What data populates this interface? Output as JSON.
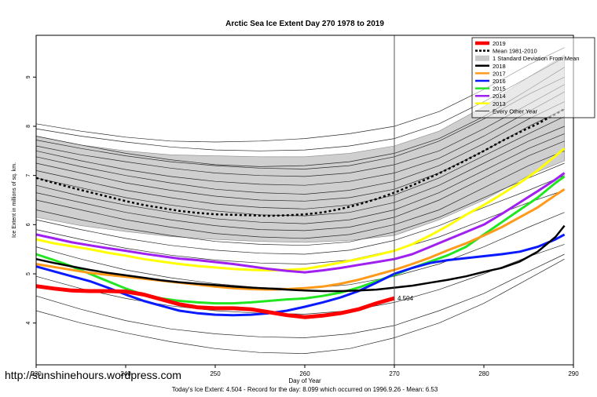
{
  "chart_data": {
    "type": "line",
    "title": "Arctic Sea Ice Extent Day 270 1978 to 2019",
    "xlabel": "Day of Year",
    "ylabel": "Ice Extent in millions of sq. km.",
    "xlim": [
      230,
      290
    ],
    "ylim": [
      3.15,
      9.85
    ],
    "x_ticks": [
      "230",
      "240",
      "250",
      "260",
      "270",
      "280",
      "290"
    ],
    "y_ticks": [
      "4",
      "5",
      "6",
      "7",
      "8",
      "9"
    ],
    "current_day": 270,
    "current_value_label": "4.504",
    "footer": "Today's Ice Extent: 4.504 - Record for the day: 8.099 which occurred on 1996.9.26 - Mean: 6.53",
    "legend_position": "top-right",
    "legend": [
      {
        "label": "2019",
        "color": "#ff0000",
        "style": "thick"
      },
      {
        "label": "Mean 1981-2010",
        "color": "#000000",
        "style": "dotted"
      },
      {
        "label": "1 Standard Deviation From Mean",
        "color": "#c8c8c8",
        "style": "box"
      },
      {
        "label": "2018",
        "color": "#000000",
        "style": "solid"
      },
      {
        "label": "2017",
        "color": "#ff9a1a",
        "style": "solid"
      },
      {
        "label": "2016",
        "color": "#0a1aff",
        "style": "solid"
      },
      {
        "label": "2015",
        "color": "#22e622",
        "style": "solid"
      },
      {
        "label": "2014",
        "color": "#a020f0",
        "style": "solid"
      },
      {
        "label": "2013",
        "color": "#ffff00",
        "style": "solid"
      },
      {
        "label": "Every Other Year",
        "color": "#000000",
        "style": "thin"
      }
    ],
    "std_band": {
      "x": [
        230,
        235,
        240,
        245,
        250,
        255,
        260,
        265,
        270,
        275,
        280,
        285,
        289
      ],
      "upper": [
        7.8,
        7.62,
        7.5,
        7.42,
        7.4,
        7.38,
        7.38,
        7.45,
        7.6,
        7.9,
        8.4,
        9.0,
        9.45
      ],
      "lower": [
        6.15,
        5.98,
        5.86,
        5.76,
        5.7,
        5.66,
        5.64,
        5.68,
        5.78,
        6.1,
        6.5,
        7.0,
        7.3
      ]
    },
    "series": [
      {
        "name": "Mean 1981-2010",
        "color": "#000000",
        "width": 2.5,
        "dash": "3,3",
        "x": [
          230,
          232,
          234,
          236,
          238,
          240,
          242,
          244,
          246,
          248,
          250,
          252,
          254,
          256,
          258,
          260,
          262,
          264,
          266,
          268,
          270,
          272,
          274,
          276,
          278,
          280,
          282,
          284,
          286,
          288,
          289
        ],
        "values": [
          6.95,
          6.85,
          6.75,
          6.66,
          6.57,
          6.48,
          6.4,
          6.34,
          6.28,
          6.24,
          6.21,
          6.2,
          6.19,
          6.18,
          6.19,
          6.21,
          6.25,
          6.32,
          6.41,
          6.52,
          6.65,
          6.8,
          6.96,
          7.13,
          7.31,
          7.5,
          7.7,
          7.88,
          8.05,
          8.25,
          8.35
        ]
      },
      {
        "name": "2013",
        "color": "#ffff00",
        "width": 3,
        "x": [
          230,
          232,
          234,
          236,
          238,
          240,
          242,
          244,
          246,
          248,
          250,
          252,
          254,
          256,
          258,
          260,
          262,
          264,
          266,
          268,
          270,
          272,
          274,
          276,
          278,
          280,
          282,
          284,
          286,
          288,
          289
        ],
        "values": [
          5.7,
          5.62,
          5.56,
          5.5,
          5.43,
          5.37,
          5.3,
          5.25,
          5.2,
          5.16,
          5.13,
          5.1,
          5.08,
          5.07,
          5.08,
          5.1,
          5.16,
          5.23,
          5.3,
          5.38,
          5.47,
          5.6,
          5.78,
          5.98,
          6.2,
          6.4,
          6.62,
          6.85,
          7.1,
          7.4,
          7.55
        ]
      },
      {
        "name": "2014",
        "color": "#a020f0",
        "width": 3,
        "x": [
          230,
          232,
          234,
          236,
          238,
          240,
          242,
          244,
          246,
          248,
          250,
          252,
          254,
          256,
          258,
          260,
          262,
          264,
          266,
          268,
          270,
          272,
          274,
          276,
          278,
          280,
          282,
          284,
          286,
          288,
          289
        ],
        "values": [
          5.8,
          5.72,
          5.64,
          5.58,
          5.52,
          5.47,
          5.41,
          5.36,
          5.31,
          5.28,
          5.24,
          5.2,
          5.15,
          5.1,
          5.06,
          5.03,
          5.07,
          5.12,
          5.18,
          5.24,
          5.3,
          5.4,
          5.55,
          5.7,
          5.85,
          6.0,
          6.22,
          6.45,
          6.68,
          6.92,
          7.05
        ]
      },
      {
        "name": "2015",
        "color": "#22e622",
        "width": 3,
        "x": [
          230,
          232,
          234,
          236,
          238,
          240,
          242,
          244,
          246,
          248,
          250,
          252,
          254,
          256,
          258,
          260,
          262,
          264,
          266,
          268,
          270,
          272,
          274,
          276,
          278,
          280,
          282,
          284,
          286,
          288,
          289
        ],
        "values": [
          5.4,
          5.28,
          5.15,
          5.0,
          4.85,
          4.7,
          4.58,
          4.5,
          4.45,
          4.42,
          4.4,
          4.4,
          4.42,
          4.45,
          4.48,
          4.5,
          4.55,
          4.62,
          4.72,
          4.85,
          4.98,
          5.12,
          5.25,
          5.38,
          5.55,
          5.8,
          6.05,
          6.3,
          6.55,
          6.85,
          6.98
        ]
      },
      {
        "name": "2016",
        "color": "#0a1aff",
        "width": 3,
        "x": [
          230,
          232,
          234,
          236,
          238,
          240,
          242,
          244,
          246,
          248,
          250,
          252,
          254,
          256,
          258,
          260,
          262,
          264,
          266,
          268,
          270,
          272,
          274,
          276,
          278,
          280,
          282,
          284,
          286,
          288,
          289
        ],
        "values": [
          5.15,
          5.05,
          4.95,
          4.85,
          4.72,
          4.58,
          4.45,
          4.35,
          4.25,
          4.2,
          4.17,
          4.16,
          4.17,
          4.2,
          4.25,
          4.33,
          4.42,
          4.52,
          4.65,
          4.82,
          5.0,
          5.12,
          5.22,
          5.28,
          5.32,
          5.36,
          5.4,
          5.45,
          5.55,
          5.7,
          5.8
        ]
      },
      {
        "name": "2017",
        "color": "#ff9a1a",
        "width": 3,
        "x": [
          230,
          232,
          234,
          236,
          238,
          240,
          242,
          244,
          246,
          248,
          250,
          252,
          254,
          256,
          258,
          260,
          262,
          264,
          266,
          268,
          270,
          272,
          274,
          276,
          278,
          280,
          282,
          284,
          286,
          288,
          289
        ],
        "values": [
          5.2,
          5.14,
          5.08,
          5.02,
          4.98,
          4.94,
          4.9,
          4.86,
          4.82,
          4.78,
          4.74,
          4.71,
          4.69,
          4.68,
          4.69,
          4.71,
          4.74,
          4.8,
          4.88,
          4.98,
          5.08,
          5.2,
          5.33,
          5.48,
          5.62,
          5.78,
          5.95,
          6.15,
          6.35,
          6.6,
          6.72
        ]
      },
      {
        "name": "2018",
        "color": "#000000",
        "width": 2.5,
        "x": [
          230,
          232,
          234,
          236,
          238,
          240,
          242,
          244,
          246,
          248,
          250,
          252,
          254,
          256,
          258,
          260,
          262,
          264,
          266,
          268,
          270,
          272,
          274,
          276,
          278,
          280,
          282,
          284,
          286,
          288,
          289
        ],
        "values": [
          5.3,
          5.22,
          5.15,
          5.08,
          5.02,
          4.97,
          4.92,
          4.87,
          4.83,
          4.8,
          4.77,
          4.74,
          4.72,
          4.7,
          4.68,
          4.66,
          4.65,
          4.65,
          4.66,
          4.68,
          4.72,
          4.76,
          4.82,
          4.88,
          4.95,
          5.04,
          5.12,
          5.25,
          5.45,
          5.75,
          5.98
        ]
      },
      {
        "name": "2019",
        "color": "#ff0000",
        "width": 5,
        "x": [
          230,
          232,
          234,
          236,
          238,
          240,
          242,
          244,
          246,
          248,
          250,
          252,
          254,
          256,
          258,
          260,
          262,
          264,
          266,
          268,
          270
        ],
        "values": [
          4.75,
          4.7,
          4.66,
          4.65,
          4.65,
          4.64,
          4.58,
          4.48,
          4.38,
          4.32,
          4.3,
          4.3,
          4.28,
          4.22,
          4.16,
          4.12,
          4.15,
          4.2,
          4.28,
          4.4,
          4.504
        ]
      }
    ],
    "other_years": {
      "x": [
        230,
        235,
        240,
        245,
        250,
        255,
        260,
        265,
        270,
        275,
        280,
        285,
        289
      ],
      "lines": [
        [
          8.05,
          7.9,
          7.78,
          7.7,
          7.68,
          7.7,
          7.75,
          7.85,
          8.0,
          8.3,
          8.75,
          9.25,
          9.6
        ],
        [
          7.95,
          7.8,
          7.68,
          7.58,
          7.52,
          7.5,
          7.52,
          7.6,
          7.75,
          8.05,
          8.5,
          9.0,
          9.4
        ],
        [
          7.8,
          7.62,
          7.45,
          7.32,
          7.22,
          7.18,
          7.2,
          7.28,
          7.45,
          7.75,
          8.2,
          8.75,
          9.2
        ],
        [
          7.72,
          7.55,
          7.4,
          7.28,
          7.2,
          7.15,
          7.13,
          7.2,
          7.38,
          7.7,
          8.15,
          8.65,
          9.0
        ],
        [
          7.6,
          7.42,
          7.28,
          7.15,
          7.05,
          7.0,
          6.98,
          7.05,
          7.22,
          7.5,
          7.95,
          8.45,
          8.85
        ],
        [
          7.5,
          7.3,
          7.12,
          6.98,
          6.88,
          6.82,
          6.8,
          6.88,
          7.05,
          7.35,
          7.8,
          8.3,
          8.7
        ],
        [
          7.38,
          7.18,
          7.0,
          6.85,
          6.72,
          6.65,
          6.62,
          6.7,
          6.88,
          7.2,
          7.65,
          8.15,
          8.5
        ],
        [
          7.25,
          7.05,
          6.85,
          6.7,
          6.58,
          6.5,
          6.48,
          6.55,
          6.72,
          7.05,
          7.5,
          8.0,
          8.35
        ],
        [
          7.1,
          6.9,
          6.7,
          6.55,
          6.42,
          6.35,
          6.32,
          6.4,
          6.6,
          6.95,
          7.4,
          7.85,
          8.2
        ],
        [
          6.95,
          6.75,
          6.55,
          6.4,
          6.28,
          6.2,
          6.18,
          6.25,
          6.45,
          6.8,
          7.25,
          7.7,
          8.0
        ],
        [
          6.8,
          6.58,
          6.4,
          6.25,
          6.12,
          6.05,
          6.02,
          6.1,
          6.3,
          6.65,
          7.1,
          7.55,
          7.85
        ],
        [
          6.65,
          6.45,
          6.25,
          6.1,
          5.98,
          5.9,
          5.88,
          5.95,
          6.15,
          6.5,
          6.95,
          7.4,
          7.7
        ],
        [
          6.5,
          6.3,
          6.1,
          5.95,
          5.82,
          5.75,
          5.72,
          5.8,
          6.0,
          6.3,
          6.75,
          7.2,
          7.5
        ],
        [
          6.3,
          6.1,
          5.92,
          5.78,
          5.66,
          5.6,
          5.58,
          5.65,
          5.85,
          6.15,
          6.55,
          6.95,
          7.25
        ],
        [
          6.1,
          5.9,
          5.72,
          5.58,
          5.48,
          5.42,
          5.4,
          5.48,
          5.68,
          5.98,
          6.35,
          6.7,
          7.0
        ],
        [
          5.9,
          5.7,
          5.52,
          5.38,
          5.28,
          5.22,
          5.2,
          5.28,
          5.48,
          5.75,
          6.1,
          6.45,
          6.7
        ],
        [
          5.55,
          5.3,
          5.08,
          4.92,
          4.8,
          4.72,
          4.7,
          4.78,
          4.95,
          5.2,
          5.55,
          5.95,
          6.25
        ],
        [
          4.95,
          4.7,
          4.5,
          4.35,
          4.25,
          4.2,
          4.18,
          4.25,
          4.42,
          4.68,
          5.0,
          5.35,
          5.6
        ],
        [
          4.55,
          4.28,
          4.05,
          3.88,
          3.78,
          3.72,
          3.7,
          3.78,
          3.95,
          4.25,
          4.6,
          5.05,
          5.4
        ],
        [
          4.25,
          4.0,
          3.8,
          3.62,
          3.48,
          3.4,
          3.38,
          3.48,
          3.7,
          4.0,
          4.4,
          4.9,
          5.3
        ]
      ]
    }
  },
  "watermark": "http://sunshinehours.wordpress.com"
}
